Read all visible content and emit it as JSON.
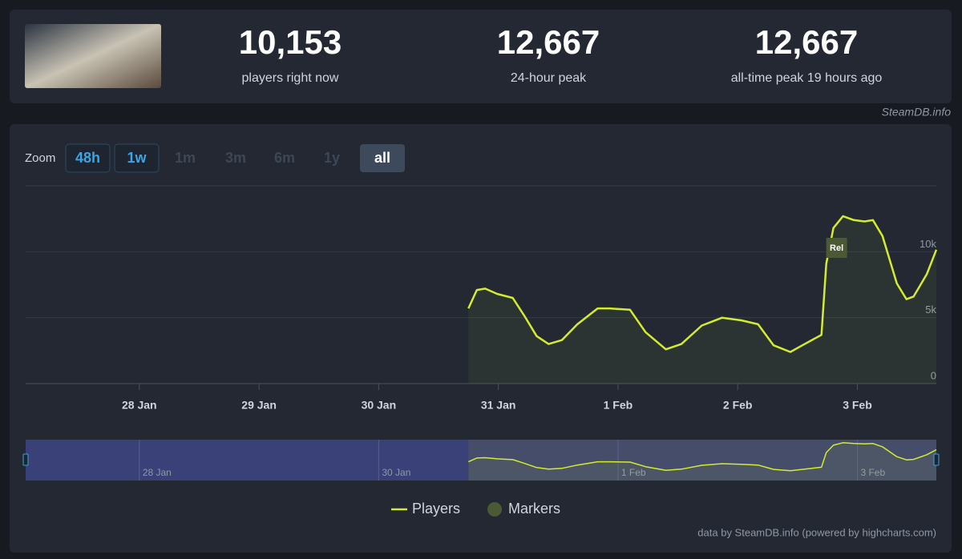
{
  "header": {
    "stats": [
      {
        "value": "10,153",
        "label": "players right now"
      },
      {
        "value": "12,667",
        "label": "24-hour peak"
      },
      {
        "value": "12,667",
        "label": "all-time peak 19 hours ago"
      }
    ],
    "source": "SteamDB.info"
  },
  "zoom": {
    "label": "Zoom",
    "buttons": [
      "48h",
      "1w",
      "1m",
      "3m",
      "6m",
      "1y",
      "all"
    ]
  },
  "chart_data": {
    "type": "line",
    "x": [
      30.75,
      30.82,
      30.89,
      30.99,
      31.12,
      31.22,
      31.32,
      31.42,
      31.53,
      31.66,
      31.83,
      31.93,
      32.1,
      32.23,
      32.4,
      32.53,
      32.7,
      32.87,
      33.03,
      33.17,
      33.3,
      33.44,
      33.54,
      33.7,
      33.74,
      33.8,
      33.88,
      33.97,
      34.06,
      34.13,
      34.21,
      34.33,
      34.41,
      34.47,
      34.58,
      34.66
    ],
    "series": [
      {
        "name": "Players",
        "color": "#d3ec2e",
        "values": [
          5700,
          7100,
          7200,
          6800,
          6500,
          5100,
          3600,
          3000,
          3300,
          4500,
          5700,
          5700,
          5600,
          3900,
          2600,
          3000,
          4400,
          5000,
          4800,
          4500,
          2900,
          2400,
          2900,
          3700,
          9100,
          11800,
          12700,
          12400,
          12300,
          12400,
          11200,
          7600,
          6400,
          6600,
          8300,
          10153
        ]
      }
    ],
    "markers": {
      "name": "Markers",
      "color": "#4b5a34",
      "points": [
        {
          "x": 33.82,
          "label": "Rel"
        }
      ]
    },
    "xlim": [
      27.05,
      34.66
    ],
    "xticks": [
      {
        "value": 28,
        "label": "28 Jan"
      },
      {
        "value": 29,
        "label": "29 Jan"
      },
      {
        "value": 30,
        "label": "30 Jan"
      },
      {
        "value": 31,
        "label": "31 Jan"
      },
      {
        "value": 32,
        "label": "1 Feb"
      },
      {
        "value": 33,
        "label": "2 Feb"
      },
      {
        "value": 34,
        "label": "3 Feb"
      }
    ],
    "ylim": [
      0,
      15000
    ],
    "yticks": [
      0,
      {
        "value": 5000,
        "label": "5k"
      },
      {
        "value": 10000,
        "label": "10k"
      }
    ],
    "grid": true,
    "legend": "bottom"
  },
  "credit": "data by SteamDB.info (powered by highcharts.com)"
}
